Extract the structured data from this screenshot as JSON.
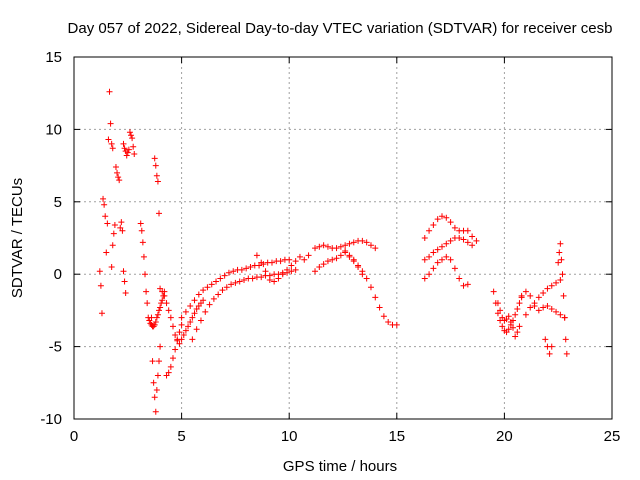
{
  "chart_data": {
    "type": "scatter",
    "title": "Day 057 of 2022, Sidereal Day-to-day VTEC variation (SDTVAR) for receiver cesb",
    "xlabel": "GPS time / hours",
    "ylabel": "SDTVAR / TECUs",
    "xlim": [
      0,
      25
    ],
    "ylim": [
      -10,
      15
    ],
    "xticks": [
      0,
      5,
      10,
      15,
      20,
      25
    ],
    "yticks": [
      -10,
      -5,
      0,
      5,
      10,
      15
    ],
    "xtick_labels": [
      "0",
      "5",
      "10",
      "15",
      "20",
      "25"
    ],
    "ytick_labels": [
      "-10",
      "-5",
      "0",
      "5",
      "10",
      "15"
    ],
    "grid": true,
    "marker": "+",
    "color": "#ff0000",
    "series": [
      {
        "name": "s1",
        "x": [
          1.2,
          1.25,
          1.3,
          1.35,
          1.4,
          1.45,
          1.5,
          1.55,
          1.6,
          1.65,
          1.7,
          1.75,
          1.8
        ],
        "y": [
          0.2,
          -0.8,
          -2.7,
          5.2,
          4.8,
          4.0,
          1.5,
          3.5,
          9.3,
          12.6,
          10.4,
          9.0,
          8.7
        ]
      },
      {
        "name": "s2",
        "x": [
          1.75,
          1.8,
          1.85,
          1.9,
          1.95,
          2.0,
          2.05,
          2.1,
          2.15,
          2.2,
          2.25,
          2.3,
          2.35,
          2.4
        ],
        "y": [
          0.5,
          2.0,
          2.8,
          3.4,
          7.4,
          7.0,
          6.7,
          6.5,
          3.2,
          3.6,
          3.0,
          0.2,
          -0.5,
          -1.3
        ]
      },
      {
        "name": "s3",
        "x": [
          2.3,
          2.35,
          2.4,
          2.45,
          2.5,
          2.55,
          2.6,
          2.65,
          2.7,
          2.75,
          2.8
        ],
        "y": [
          9.0,
          8.7,
          8.5,
          8.2,
          8.4,
          8.6,
          9.8,
          9.6,
          9.4,
          8.8,
          8.3
        ]
      },
      {
        "name": "s4",
        "x": [
          3.1,
          3.15,
          3.2,
          3.25,
          3.3,
          3.35,
          3.4,
          3.45,
          3.5,
          3.55,
          3.6,
          3.65,
          3.7,
          3.75,
          3.8,
          3.85,
          3.9,
          3.95,
          4.0,
          4.05,
          4.1,
          4.15,
          4.2
        ],
        "y": [
          3.5,
          3.0,
          2.2,
          1.2,
          0.0,
          -1.2,
          -2.0,
          -3.0,
          -3.2,
          -3.4,
          -3.5,
          -3.6,
          -3.6,
          -3.5,
          -3.3,
          -3.0,
          -2.8,
          -2.5,
          -2.3,
          -2.0,
          -1.8,
          -1.5,
          -1.2
        ]
      },
      {
        "name": "s5",
        "x": [
          3.6,
          3.65,
          3.7,
          3.75,
          3.8,
          3.85,
          3.9,
          3.95,
          4.0
        ],
        "y": [
          -3.0,
          -6.0,
          -7.5,
          -8.5,
          -9.5,
          -8.0,
          -7.0,
          -6.0,
          -5.0
        ]
      },
      {
        "name": "s6",
        "x": [
          3.75,
          3.8,
          3.85,
          3.9,
          3.95
        ],
        "y": [
          8.0,
          7.5,
          6.8,
          6.4,
          4.2
        ]
      },
      {
        "name": "s7",
        "x": [
          4.0,
          4.1,
          4.2,
          4.3,
          4.4,
          4.5,
          4.6,
          4.7,
          4.8,
          4.9,
          5.0,
          5.1,
          5.2,
          5.3,
          5.4,
          5.5,
          5.6,
          5.7,
          5.8,
          5.9,
          6.0
        ],
        "y": [
          -1.0,
          -1.2,
          -1.5,
          -2.0,
          -2.5,
          -3.0,
          -3.6,
          -4.2,
          -4.5,
          -4.8,
          -4.5,
          -4.2,
          -3.9,
          -3.6,
          -3.3,
          -3.0,
          -2.7,
          -2.4,
          -2.2,
          -2.0,
          -1.8
        ]
      },
      {
        "name": "s8",
        "x": [
          4.3,
          4.4,
          4.5,
          4.6,
          4.7,
          4.8,
          4.9,
          5.0
        ],
        "y": [
          -7.0,
          -6.8,
          -6.4,
          -5.8,
          -5.2,
          -4.6,
          -4.0,
          -3.5
        ]
      },
      {
        "name": "s9",
        "x": [
          5.0,
          5.2,
          5.4,
          5.6,
          5.8,
          6.0,
          6.2,
          6.4,
          6.6,
          6.8,
          7.0,
          7.2,
          7.4,
          7.6,
          7.8,
          8.0,
          8.2,
          8.4,
          8.6,
          8.8,
          9.0,
          9.2,
          9.4,
          9.6,
          9.8,
          10.0
        ],
        "y": [
          -3.0,
          -2.6,
          -2.2,
          -1.8,
          -1.4,
          -1.1,
          -0.9,
          -0.7,
          -0.5,
          -0.3,
          -0.1,
          0.1,
          0.2,
          0.3,
          0.3,
          0.4,
          0.5,
          0.6,
          0.6,
          0.7,
          0.8,
          0.8,
          0.9,
          0.9,
          1.0,
          1.0
        ]
      },
      {
        "name": "s10",
        "x": [
          5.5,
          5.7,
          5.9,
          6.1,
          6.3,
          6.5,
          6.7,
          6.9,
          7.1,
          7.3,
          7.5,
          7.7,
          7.9,
          8.1,
          8.3,
          8.5,
          8.7,
          8.9,
          9.1,
          9.3,
          9.5,
          9.7,
          9.9,
          10.1,
          10.3
        ],
        "y": [
          -4.5,
          -3.8,
          -3.2,
          -2.6,
          -2.1,
          -1.7,
          -1.4,
          -1.1,
          -0.9,
          -0.7,
          -0.6,
          -0.5,
          -0.4,
          -0.3,
          -0.3,
          -0.2,
          -0.2,
          -0.1,
          -0.1,
          0.0,
          0.0,
          0.1,
          0.1,
          0.2,
          0.3
        ]
      },
      {
        "name": "s11",
        "x": [
          8.5,
          8.7,
          8.9,
          9.1,
          9.3,
          9.5,
          9.7,
          9.9,
          10.1,
          10.3,
          10.5,
          10.7,
          10.9
        ],
        "y": [
          1.3,
          0.8,
          0.2,
          -0.4,
          -0.5,
          -0.3,
          0.0,
          0.3,
          0.6,
          0.9,
          1.2,
          1.0,
          1.3
        ]
      },
      {
        "name": "s12",
        "x": [
          11.2,
          11.4,
          11.6,
          11.8,
          12.0,
          12.2,
          12.4,
          12.6,
          12.8,
          13.0,
          13.2,
          13.4,
          13.6,
          13.8,
          14.0
        ],
        "y": [
          1.8,
          1.9,
          2.0,
          1.9,
          1.8,
          1.8,
          1.9,
          2.0,
          2.1,
          2.2,
          2.3,
          2.3,
          2.2,
          2.0,
          1.8
        ]
      },
      {
        "name": "s13",
        "x": [
          11.2,
          11.4,
          11.6,
          11.8,
          12.0,
          12.2,
          12.4,
          12.6,
          12.8,
          13.0,
          13.2,
          13.4
        ],
        "y": [
          0.2,
          0.5,
          0.7,
          0.9,
          1.0,
          1.1,
          1.3,
          1.5,
          1.2,
          0.9,
          0.5,
          0.0
        ]
      },
      {
        "name": "s14",
        "x": [
          12.6,
          12.8,
          13.0,
          13.2,
          13.4,
          13.6,
          13.8,
          14.0,
          14.2,
          14.4,
          14.6,
          14.8,
          15.0
        ],
        "y": [
          1.6,
          1.3,
          1.0,
          0.6,
          0.2,
          -0.3,
          -0.9,
          -1.6,
          -2.3,
          -2.9,
          -3.3,
          -3.5,
          -3.5
        ]
      },
      {
        "name": "s15",
        "x": [
          16.3,
          16.5,
          16.7,
          16.9,
          17.1,
          17.3,
          17.5,
          17.7,
          17.9,
          18.1,
          18.3,
          18.5,
          18.7
        ],
        "y": [
          2.5,
          3.0,
          3.4,
          3.8,
          4.0,
          3.9,
          3.6,
          3.2,
          3.0,
          3.0,
          3.0,
          2.6,
          2.3
        ]
      },
      {
        "name": "s16",
        "x": [
          16.3,
          16.5,
          16.7,
          16.9,
          17.1,
          17.3,
          17.5,
          17.7,
          17.9,
          18.1,
          18.3,
          18.5
        ],
        "y": [
          1.0,
          1.2,
          1.5,
          1.7,
          1.9,
          2.1,
          2.3,
          2.5,
          2.5,
          2.4,
          2.2,
          2.0
        ]
      },
      {
        "name": "s17",
        "x": [
          16.3,
          16.5,
          16.7,
          16.9,
          17.1,
          17.3,
          17.5,
          17.7,
          17.9,
          18.1,
          18.3
        ],
        "y": [
          -0.3,
          0.0,
          0.4,
          0.8,
          1.0,
          1.2,
          1.0,
          0.4,
          -0.3,
          -0.8,
          -0.7
        ]
      },
      {
        "name": "s18",
        "x": [
          19.5,
          19.6,
          19.7,
          19.8,
          19.9,
          20.0,
          20.1,
          20.2,
          20.3,
          20.4,
          20.5,
          20.6,
          20.7,
          20.8
        ],
        "y": [
          -1.2,
          -2.0,
          -2.7,
          -3.2,
          -3.6,
          -3.9,
          -4.0,
          -3.8,
          -3.5,
          -3.2,
          -2.8,
          -2.4,
          -2.0,
          -1.6
        ]
      },
      {
        "name": "s19",
        "x": [
          19.7,
          19.8,
          19.9,
          20.0,
          20.1,
          20.2,
          20.3,
          20.4,
          20.5,
          20.6,
          20.7
        ],
        "y": [
          -2.0,
          -2.5,
          -3.0,
          -3.2,
          -3.1,
          -2.9,
          -3.3,
          -3.7,
          -4.3,
          -4.0,
          -3.6
        ]
      },
      {
        "name": "s20",
        "x": [
          20.8,
          21.0,
          21.2,
          21.4,
          21.6,
          21.8,
          22.0,
          22.2,
          22.4,
          22.6,
          22.8
        ],
        "y": [
          -1.5,
          -1.2,
          -1.5,
          -2.2,
          -2.5,
          -2.3,
          -2.2,
          -2.4,
          -2.6,
          -2.8,
          -3.0
        ]
      },
      {
        "name": "s21",
        "x": [
          21.0,
          21.2,
          21.4,
          21.6,
          21.8,
          22.0,
          22.2,
          22.4,
          22.6
        ],
        "y": [
          -2.8,
          -2.3,
          -2.0,
          -1.6,
          -1.3,
          -1.0,
          -0.8,
          -0.6,
          -0.4
        ]
      },
      {
        "name": "s22",
        "x": [
          22.5,
          22.55,
          22.6,
          22.65,
          22.7,
          22.75,
          22.8,
          22.85,
          22.9
        ],
        "y": [
          0.8,
          1.5,
          2.1,
          1.0,
          0.0,
          -1.5,
          -3.0,
          -4.5,
          -5.5
        ]
      },
      {
        "name": "s23",
        "x": [
          21.9,
          22.0,
          22.1,
          22.2
        ],
        "y": [
          -4.5,
          -5.0,
          -5.5,
          -5.0
        ]
      }
    ]
  }
}
